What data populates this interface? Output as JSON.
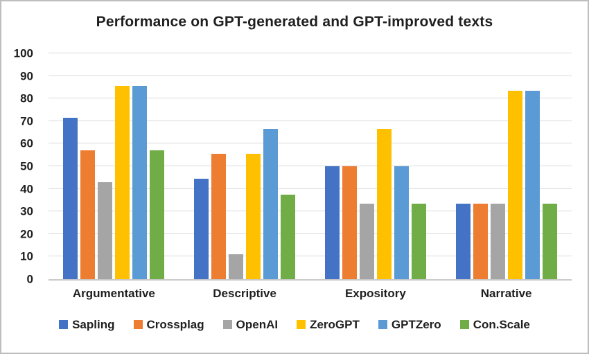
{
  "title": "Performance on GPT-generated and GPT-improved texts",
  "chart_data": {
    "type": "bar",
    "title": "Performance on GPT-generated and GPT-improved texts",
    "categories": [
      "Argumentative",
      "Descriptive",
      "Expository",
      "Narrative"
    ],
    "series": [
      {
        "name": "Sapling",
        "color": "#4472C4",
        "values": [
          71.4,
          44.4,
          50.0,
          33.3
        ]
      },
      {
        "name": "Crossplag",
        "color": "#ED7D31",
        "values": [
          57.1,
          55.6,
          50.0,
          33.3
        ]
      },
      {
        "name": "OpenAI",
        "color": "#A5A5A5",
        "values": [
          42.9,
          11.1,
          33.3,
          33.3
        ]
      },
      {
        "name": "ZeroGPT",
        "color": "#FFC000",
        "values": [
          85.7,
          55.6,
          66.7,
          83.3
        ]
      },
      {
        "name": "GPTZero",
        "color": "#5B9BD5",
        "values": [
          85.7,
          66.7,
          50.0,
          83.3
        ]
      },
      {
        "name": "Con.Scale",
        "color": "#70AD47",
        "values": [
          57.1,
          37.5,
          33.3,
          33.3
        ]
      }
    ],
    "ylim": [
      0,
      100
    ],
    "yticks": [
      0,
      10,
      20,
      30,
      40,
      50,
      60,
      70,
      80,
      90,
      100
    ],
    "grid": true,
    "legend_position": "bottom",
    "xlabel": "",
    "ylabel": ""
  },
  "colors": {
    "gridline": "#D9D9D9",
    "axis_line": "#C9C9C9",
    "frame_border": "#BDBDBD",
    "text": "#1F1F1F",
    "background": "#FFFFFF"
  }
}
